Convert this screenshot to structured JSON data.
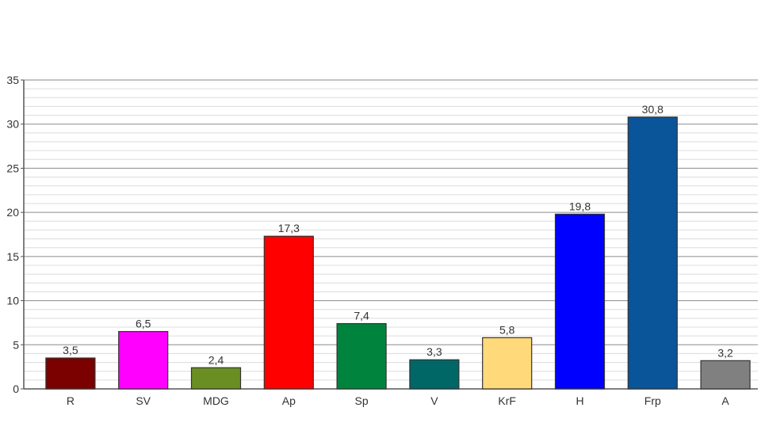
{
  "chart_data": {
    "type": "bar",
    "title": "",
    "xlabel": "",
    "ylabel": "",
    "ylim": [
      0,
      35
    ],
    "yticks": [
      0,
      5,
      10,
      15,
      20,
      25,
      30,
      35
    ],
    "minor_grid_step": 1,
    "grid": true,
    "categories": [
      "R",
      "SV",
      "MDG",
      "Ap",
      "Sp",
      "V",
      "KrF",
      "H",
      "Frp",
      "A"
    ],
    "values": [
      3.5,
      6.5,
      2.4,
      17.3,
      7.4,
      3.3,
      5.8,
      19.8,
      30.8,
      3.2
    ],
    "value_labels": [
      "3,5",
      "6,5",
      "2,4",
      "17,3",
      "7,4",
      "3,3",
      "5,8",
      "19,8",
      "30,8",
      "3,2"
    ],
    "colors": [
      "#7b0000",
      "#ff00ff",
      "#6b8e23",
      "#ff0000",
      "#00843d",
      "#006666",
      "#ffd97a",
      "#0000ff",
      "#0a5599",
      "#808080"
    ]
  }
}
